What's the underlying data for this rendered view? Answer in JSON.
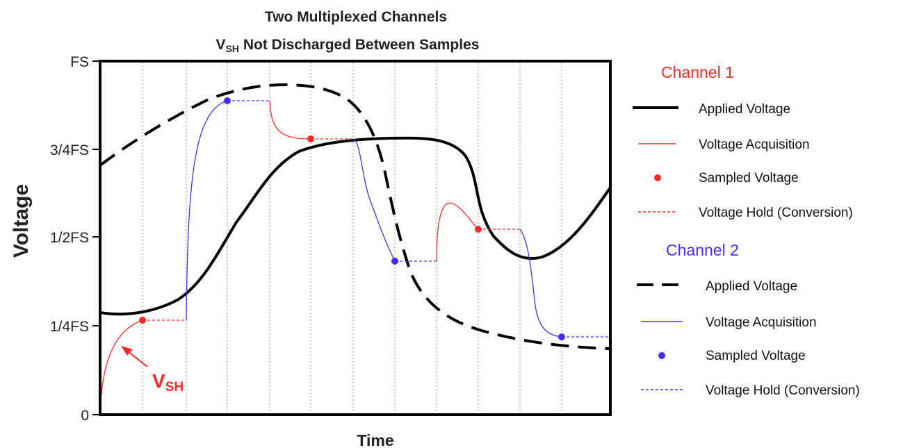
{
  "colors": {
    "ch1": "#ff2a2a",
    "ch2": "#4a2bff",
    "applied": "#000000",
    "grid": "#9a9a9a"
  },
  "figure": {
    "title_line1": "Two Multiplexed Channels",
    "title_line2_main": "V",
    "title_line2_sub": "SH",
    "title_line2_rest": " Not Discharged Between Samples"
  },
  "axes": {
    "ylabel": "Voltage",
    "xlabel": "Time",
    "ticks": [
      {
        "label": "FS",
        "value": 1.0
      },
      {
        "label": "3/4FS",
        "value": 0.75
      },
      {
        "label": "1/2FS",
        "value": 0.5
      },
      {
        "label": "1/4FS",
        "value": 0.25
      },
      {
        "label": "0",
        "value": 0
      }
    ]
  },
  "annotation": {
    "main": "V",
    "sub": "SH"
  },
  "legend": {
    "channel1": {
      "title": "Channel 1",
      "items": [
        "Applied Voltage",
        "Voltage Acquisition",
        "Sampled Voltage",
        "Voltage Hold (Conversion)"
      ]
    },
    "channel2": {
      "title": "Channel 2",
      "items": [
        "Applied Voltage",
        "Voltage Acquisition",
        "Sampled Voltage",
        "Voltage Hold (Conversion)"
      ]
    }
  }
}
